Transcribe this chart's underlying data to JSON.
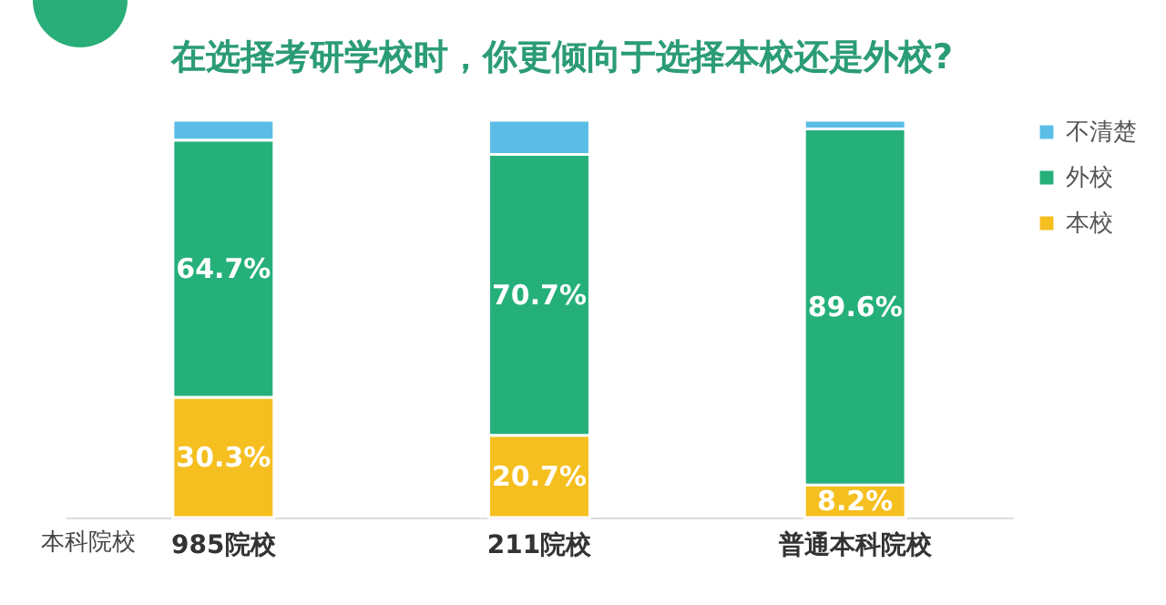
{
  "chart_data": {
    "type": "bar",
    "title": "在选择考研学校时，你更倾向于选择本校还是外校?",
    "xlabel": "本科院校",
    "categories": [
      "985院校",
      "211院校",
      "普通本科院校"
    ],
    "stacked": true,
    "legend": "right",
    "series": [
      {
        "name": "本校",
        "color": "#f5bf1f",
        "values": [
          30.3,
          20.7,
          8.2
        ],
        "value_labels": [
          "30.3%",
          "20.7%",
          "8.2%"
        ]
      },
      {
        "name": "外校",
        "color": "#25b07a",
        "values": [
          64.7,
          70.7,
          89.6
        ],
        "value_labels": [
          "64.7%",
          "70.7%",
          "89.6%"
        ]
      },
      {
        "name": "不清楚",
        "color": "#5bbde6",
        "values": [
          5.0,
          8.6,
          2.2
        ],
        "value_labels": [
          null,
          null,
          null
        ]
      }
    ]
  }
}
